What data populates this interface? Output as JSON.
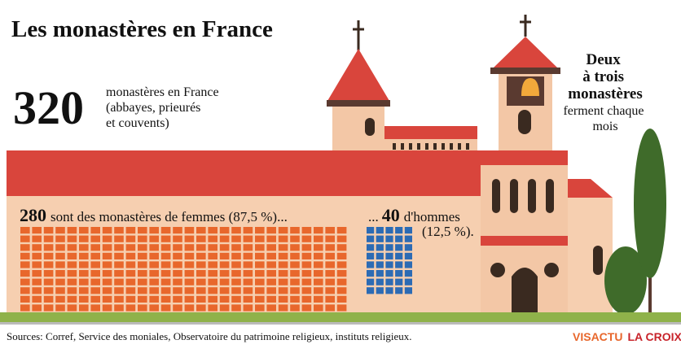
{
  "header": {
    "title": "Les monastères en France"
  },
  "total": {
    "count": 320,
    "text_lines": [
      "monastères en France",
      "(abbayes, prieurés",
      "et couvents)"
    ]
  },
  "groups": [
    {
      "count": 280,
      "text": "sont des monastères de femmes (87,5 %)...",
      "color": "#e8672c"
    },
    {
      "prefix": "...",
      "count": 40,
      "text_lines": [
        "d'hommes",
        "(12,5 %)."
      ],
      "color": "#2c6bb4"
    }
  ],
  "side_note": {
    "bold_lines": [
      "Deux",
      "à trois",
      "monastères"
    ],
    "lines": [
      "ferment chaque",
      "mois"
    ]
  },
  "footer": {
    "sources": "Sources: Corref, Service des moniales, Observatoire du patrimoine religieux, instituts religieux.",
    "logo_left": "VISACTU",
    "logo_right": "LA CROIX"
  }
}
